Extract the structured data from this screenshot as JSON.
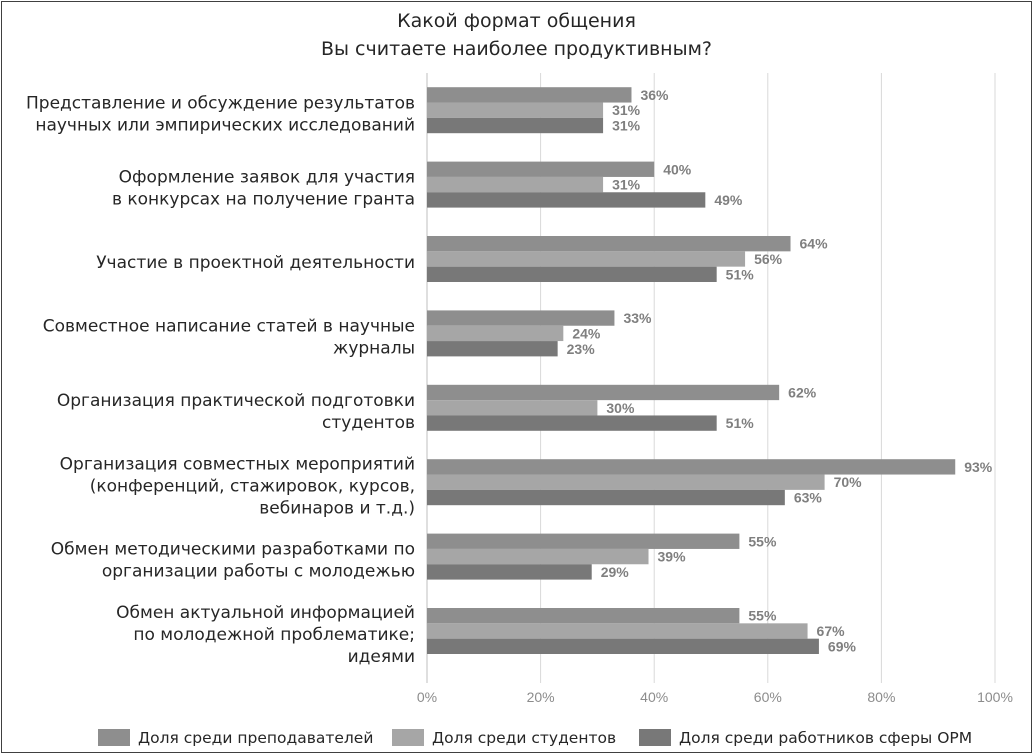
{
  "chart_data": {
    "type": "bar",
    "orientation": "horizontal",
    "title": [
      "Какой формат общения",
      "Вы считаете наиболее продуктивным?"
    ],
    "categories": [
      [
        "Представление и обсуждение результатов",
        "научных или эмпирических исследований"
      ],
      [
        "Оформление заявок для участия",
        "в конкурсах на получение гранта"
      ],
      [
        "Участие в проектной деятельности"
      ],
      [
        "Совместное написание статей в научные",
        "журналы"
      ],
      [
        "Организация практической подготовки",
        "студентов"
      ],
      [
        "Организация совместных мероприятий",
        "(конференций, стажировок, курсов,",
        "вебинаров и т.д.)"
      ],
      [
        "Обмен методическими разработками по",
        "организации работы с молодежью"
      ],
      [
        "Обмен актуальной информацией",
        "по молодежной проблематике;",
        "идеями"
      ]
    ],
    "series": [
      {
        "name": "Доля среди преподавателей",
        "color": "#8e8e8e",
        "values": [
          36,
          40,
          64,
          33,
          62,
          93,
          55,
          55
        ]
      },
      {
        "name": "Доля среди студентов",
        "color": "#a6a6a6",
        "values": [
          31,
          31,
          56,
          24,
          30,
          70,
          39,
          67
        ]
      },
      {
        "name": "Доля среди работников сферы ОРМ",
        "color": "#787878",
        "values": [
          31,
          49,
          51,
          23,
          51,
          63,
          29,
          69
        ]
      }
    ],
    "value_unit": "%",
    "xlim": [
      0,
      100
    ],
    "x_ticks": [
      0,
      20,
      40,
      60,
      80,
      100
    ],
    "x_tick_labels": [
      "0%",
      "20%",
      "40%",
      "60%",
      "80%",
      "100%"
    ],
    "data_labels": true,
    "grid": "vertical",
    "legend_position": "bottom"
  }
}
